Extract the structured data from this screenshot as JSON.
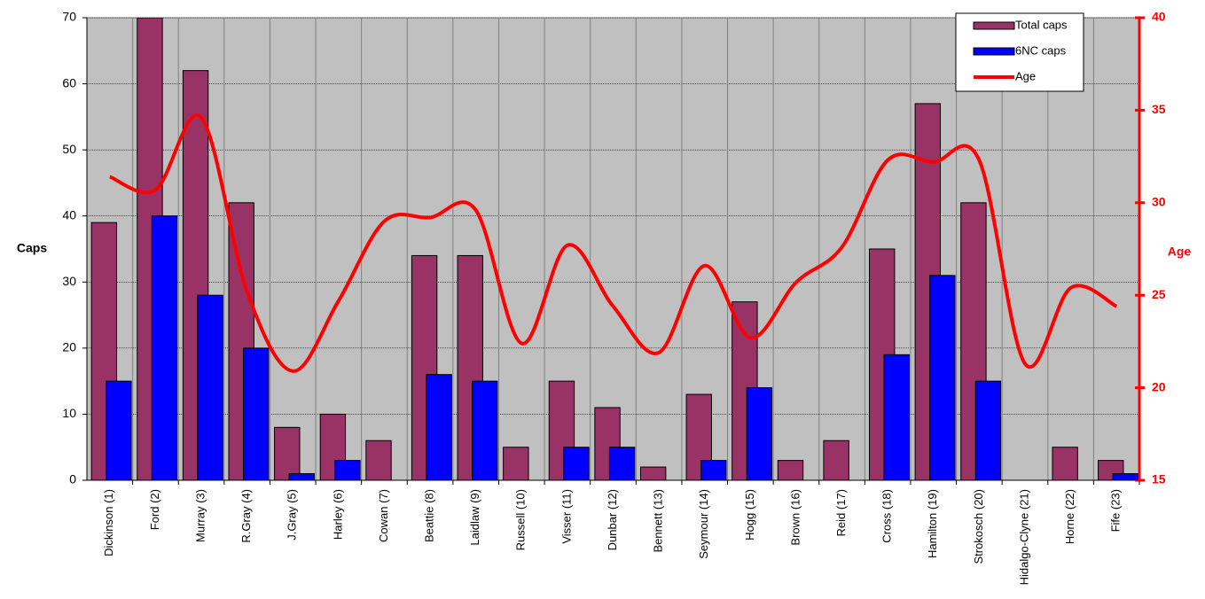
{
  "chart_data": {
    "type": "bar",
    "categories": [
      "Dickinson (1)",
      "Ford (2)",
      "Murray (3)",
      "R.Gray (4)",
      "J.Gray (5)",
      "Harley (6)",
      "Cowan (7)",
      "Beattie (8)",
      "Laidlaw (9)",
      "Russell (10)",
      "Visser (11)",
      "Dunbar (12)",
      "Bennett (13)",
      "Seymour (14)",
      "Hogg (15)",
      "Brown (16)",
      "Reid (17)",
      "Cross (18)",
      "Hamilton (19)",
      "Strokosch (20)",
      "Hidalgo-Clyne (21)",
      "Horne (22)",
      "Fife (23)"
    ],
    "series": [
      {
        "name": "Total caps",
        "type": "bar",
        "color": "#993366",
        "values": [
          39,
          70,
          62,
          42,
          8,
          10,
          6,
          34,
          34,
          5,
          15,
          11,
          2,
          13,
          27,
          3,
          6,
          35,
          57,
          42,
          0,
          5,
          3
        ]
      },
      {
        "name": "6NC caps",
        "type": "bar",
        "color": "#0000ff",
        "values": [
          15,
          40,
          28,
          20,
          1,
          3,
          0,
          16,
          15,
          0,
          5,
          5,
          0,
          3,
          14,
          0,
          0,
          19,
          31,
          15,
          0,
          0,
          1
        ]
      },
      {
        "name": "Age",
        "type": "line",
        "axis": "y2",
        "color": "#ff0000",
        "values": [
          31.4,
          30.7,
          34.6,
          25.2,
          20.9,
          24.7,
          29.0,
          29.2,
          29.6,
          22.4,
          27.7,
          24.4,
          21.9,
          26.6,
          22.7,
          25.7,
          27.6,
          32.3,
          32.2,
          32.3,
          21.3,
          25.4,
          24.4
        ]
      }
    ],
    "y_label": "Caps",
    "y2_label": "Age",
    "ylim": [
      0,
      70
    ],
    "yticks": [
      0,
      10,
      20,
      30,
      40,
      50,
      60,
      70
    ],
    "y2lim": [
      15,
      40
    ],
    "y2ticks": [
      15,
      20,
      25,
      30,
      35,
      40
    ],
    "grid": true,
    "legend": "top-right"
  }
}
